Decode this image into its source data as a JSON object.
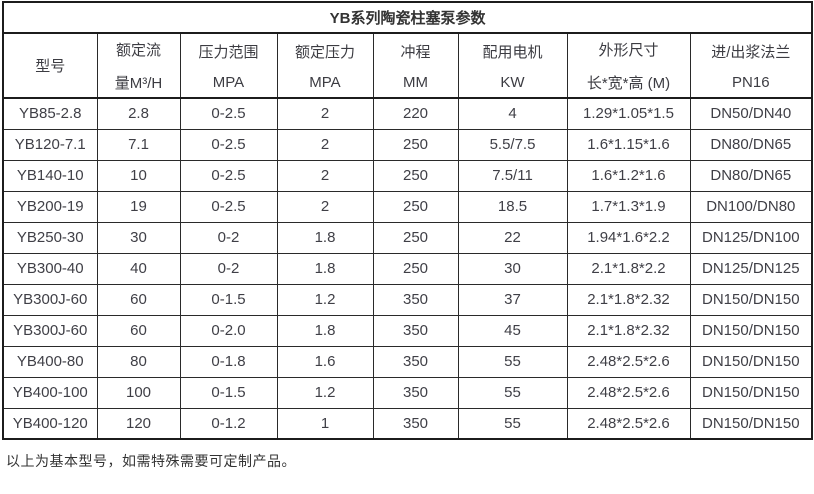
{
  "table": {
    "title": "YB系列陶瓷柱塞泵参数",
    "border_color": "#2a2a2a",
    "text_color": "#3f3f46",
    "columns": [
      {
        "id": "model",
        "width": 94,
        "line1": "型号",
        "line2": ""
      },
      {
        "id": "rated-flow",
        "width": 83,
        "line1": "额定流",
        "line2": "量M³/H"
      },
      {
        "id": "pressure-range",
        "width": 97,
        "line1": "压力范围",
        "line2": "MPA"
      },
      {
        "id": "rated-pressure",
        "width": 96,
        "line1": "额定压力",
        "line2": "MPA"
      },
      {
        "id": "stroke",
        "width": 85,
        "line1": "冲程",
        "line2": "MM"
      },
      {
        "id": "motor-power",
        "width": 109,
        "line1": "配用电机",
        "line2": "KW"
      },
      {
        "id": "dimensions",
        "width": 123,
        "line1": "外形尺寸",
        "line2": "长*宽*高 (M)"
      },
      {
        "id": "flange",
        "width": 122,
        "line1": "进/出浆法兰",
        "line2": "PN16"
      }
    ],
    "rows": [
      [
        "YB85-2.8",
        "2.8",
        "0-2.5",
        "2",
        "220",
        "4",
        "1.29*1.05*1.5",
        "DN50/DN40"
      ],
      [
        "YB120-7.1",
        "7.1",
        "0-2.5",
        "2",
        "250",
        "5.5/7.5",
        "1.6*1.15*1.6",
        "DN80/DN65"
      ],
      [
        "YB140-10",
        "10",
        "0-2.5",
        "2",
        "250",
        "7.5/11",
        "1.6*1.2*1.6",
        "DN80/DN65"
      ],
      [
        "YB200-19",
        "19",
        "0-2.5",
        "2",
        "250",
        "18.5",
        "1.7*1.3*1.9",
        "DN100/DN80"
      ],
      [
        "YB250-30",
        "30",
        "0-2",
        "1.8",
        "250",
        "22",
        "1.94*1.6*2.2",
        "DN125/DN100"
      ],
      [
        "YB300-40",
        "40",
        "0-2",
        "1.8",
        "250",
        "30",
        "2.1*1.8*2.2",
        "DN125/DN125"
      ],
      [
        "YB300J-60",
        "60",
        "0-1.5",
        "1.2",
        "350",
        "37",
        "2.1*1.8*2.32",
        "DN150/DN150"
      ],
      [
        "YB300J-60",
        "60",
        "0-2.0",
        "1.8",
        "350",
        "45",
        "2.1*1.8*2.32",
        "DN150/DN150"
      ],
      [
        "YB400-80",
        "80",
        "0-1.8",
        "1.6",
        "350",
        "55",
        "2.48*2.5*2.6",
        "DN150/DN150"
      ],
      [
        "YB400-100",
        "100",
        "0-1.5",
        "1.2",
        "350",
        "55",
        "2.48*2.5*2.6",
        "DN150/DN150"
      ],
      [
        "YB400-120",
        "120",
        "0-1.2",
        "1",
        "350",
        "55",
        "2.48*2.5*2.6",
        "DN150/DN150"
      ]
    ]
  },
  "footer": {
    "note": "以上为基本型号，如需特殊需要可定制产品。"
  }
}
